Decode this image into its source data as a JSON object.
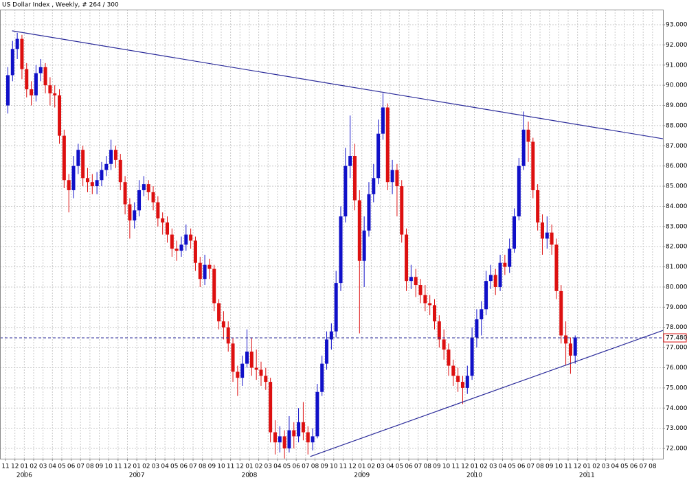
{
  "chart_data": {
    "type": "candlestick",
    "title": "US Dollar Index , Weekly, # 264 / 300",
    "xlim": [
      -0.59,
      70.11
    ],
    "ylim": [
      71.49,
      93.75
    ],
    "grid": true,
    "up_color": "#1010c8",
    "down_color": "#dd1010",
    "line_color": "#2a2a9a",
    "x": [
      0.25,
      0.75,
      1.25,
      1.75,
      2.25,
      2.75,
      3.25,
      3.75,
      4.25,
      4.75,
      5.25,
      5.75,
      6.25,
      6.75,
      7.25,
      7.75,
      8.25,
      8.75,
      9.25,
      9.75,
      10.25,
      10.75,
      11.25,
      11.75,
      12.25,
      12.75,
      13.25,
      13.75,
      14.25,
      14.75,
      15.25,
      15.75,
      16.25,
      16.75,
      17.25,
      17.75,
      18.25,
      18.75,
      19.25,
      19.75,
      20.25,
      20.75,
      21.25,
      21.75,
      22.25,
      22.75,
      23.25,
      23.75,
      24.25,
      24.75,
      25.25,
      25.75,
      26.25,
      26.75,
      27.25,
      27.75,
      28.25,
      28.75,
      29.25,
      29.75,
      30.25,
      30.75,
      31.25,
      31.75,
      32.25,
      32.75,
      33.25,
      33.75,
      34.25,
      34.75,
      35.25,
      35.75,
      36.25,
      36.75,
      37.25,
      37.75,
      38.25,
      38.75,
      39.25,
      39.75,
      40.25,
      40.75,
      41.25,
      41.75,
      42.25,
      42.75,
      43.25,
      43.75,
      44.25,
      44.75,
      45.25,
      45.75,
      46.25,
      46.75,
      47.25,
      47.75,
      48.25,
      48.75,
      49.25,
      49.75,
      50.25,
      50.75,
      51.25,
      51.75,
      52.25,
      52.75,
      53.25,
      53.75,
      54.25,
      54.75,
      55.25,
      55.75,
      56.25,
      56.75,
      57.25,
      57.75,
      58.25,
      58.75,
      59.25,
      59.75,
      60.25,
      60.75
    ],
    "open": [
      89.0,
      90.5,
      91.8,
      92.3,
      90.8,
      89.8,
      89.5,
      90.6,
      90.9,
      90.0,
      89.6,
      89.5,
      87.5,
      85.3,
      84.8,
      86.0,
      86.8,
      85.4,
      85.2,
      85.0,
      85.3,
      85.8,
      86.1,
      86.8,
      86.3,
      85.2,
      84.1,
      83.3,
      83.8,
      84.8,
      85.1,
      84.7,
      84.2,
      83.4,
      83.2,
      82.6,
      81.9,
      81.8,
      82.1,
      82.6,
      82.3,
      81.2,
      80.4,
      81.1,
      80.9,
      79.2,
      78.3,
      78.0,
      77.2,
      75.8,
      75.5,
      76.2,
      76.8,
      76.0,
      75.9,
      75.6,
      75.3,
      72.8,
      72.3,
      72.6,
      72.0,
      72.9,
      72.6,
      73.3,
      72.8,
      72.3,
      72.6,
      74.8,
      76.2,
      77.4,
      77.8,
      80.2,
      83.5,
      86.0,
      86.5,
      84.3,
      81.3,
      82.8,
      84.6,
      85.4,
      87.6,
      88.9,
      85.2,
      85.8,
      85.0,
      82.6,
      80.3,
      80.5,
      80.1,
      79.6,
      79.2,
      79.1,
      78.3,
      77.4,
      76.9,
      76.1,
      75.6,
      75.3,
      75.0,
      75.6,
      77.5,
      78.4,
      78.9,
      80.3,
      80.6,
      80.0,
      81.2,
      81.0,
      81.9,
      83.5,
      86.0,
      87.8,
      87.2,
      84.8,
      83.2,
      82.4,
      82.7,
      82.1,
      79.8,
      77.6,
      77.2,
      76.6
    ],
    "high": [
      90.9,
      92.2,
      92.6,
      92.5,
      91.1,
      90.2,
      91.0,
      91.3,
      91.1,
      90.4,
      90.0,
      89.8,
      87.8,
      85.6,
      86.5,
      87.1,
      87.0,
      85.9,
      85.6,
      85.7,
      86.2,
      86.5,
      87.3,
      87.0,
      86.6,
      85.5,
      84.4,
      84.2,
      85.3,
      85.5,
      85.3,
      85.0,
      84.5,
      83.7,
      83.5,
      82.9,
      82.3,
      82.5,
      83.1,
      82.9,
      82.5,
      81.5,
      81.6,
      81.4,
      81.1,
      79.4,
      78.8,
      78.3,
      77.5,
      76.1,
      76.6,
      77.9,
      77.5,
      76.9,
      76.3,
      76.0,
      75.5,
      73.4,
      73.1,
      72.9,
      73.6,
      73.3,
      74.0,
      74.3,
      73.1,
      73.0,
      75.2,
      76.6,
      77.8,
      78.2,
      80.8,
      84.0,
      86.9,
      88.5,
      87.1,
      84.8,
      83.5,
      85.2,
      86.1,
      88.3,
      89.6,
      89.1,
      86.3,
      86.1,
      85.3,
      82.9,
      81.1,
      80.9,
      80.4,
      80.1,
      79.6,
      79.4,
      78.6,
      77.9,
      77.2,
      76.4,
      76.0,
      75.6,
      76.1,
      78.0,
      78.9,
      79.3,
      80.8,
      81.1,
      80.9,
      81.6,
      81.6,
      82.4,
      83.9,
      86.4,
      88.7,
      88.2,
      87.4,
      85.1,
      83.6,
      83.5,
      83.1,
      82.4,
      80.1,
      78.3,
      77.5,
      77.6
    ],
    "low": [
      88.6,
      90.2,
      91.3,
      90.3,
      89.4,
      89.0,
      89.2,
      90.2,
      89.6,
      89.0,
      88.9,
      87.1,
      84.9,
      83.7,
      84.4,
      85.6,
      85.0,
      84.7,
      84.6,
      84.6,
      85.0,
      85.5,
      85.8,
      85.9,
      84.8,
      83.6,
      82.4,
      82.9,
      83.5,
      84.5,
      84.3,
      83.8,
      83.0,
      82.6,
      82.2,
      81.5,
      81.3,
      81.5,
      81.8,
      81.9,
      80.8,
      80.0,
      80.1,
      80.4,
      78.8,
      77.9,
      77.4,
      76.8,
      75.3,
      74.6,
      75.1,
      76.0,
      75.6,
      75.4,
      75.1,
      74.9,
      72.3,
      71.7,
      71.8,
      71.5,
      71.8,
      72.0,
      72.3,
      72.4,
      71.7,
      71.9,
      72.5,
      74.6,
      75.9,
      76.9,
      77.5,
      79.8,
      83.2,
      85.4,
      83.8,
      77.7,
      80.0,
      82.5,
      84.2,
      85.1,
      87.3,
      84.8,
      84.6,
      83.5,
      82.2,
      79.8,
      79.9,
      79.5,
      79.2,
      78.8,
      78.6,
      77.9,
      77.0,
      76.4,
      75.6,
      75.1,
      74.8,
      74.2,
      74.7,
      75.4,
      77.0,
      77.6,
      78.6,
      79.9,
      79.6,
      79.8,
      80.6,
      80.7,
      81.7,
      83.3,
      85.8,
      86.2,
      84.4,
      82.8,
      81.6,
      81.9,
      81.6,
      79.4,
      77.2,
      76.1,
      75.7,
      76.2
    ],
    "close": [
      90.5,
      91.8,
      92.3,
      90.8,
      89.8,
      89.5,
      90.6,
      90.9,
      90.0,
      89.6,
      89.5,
      87.5,
      85.3,
      84.8,
      86.0,
      86.8,
      85.4,
      85.2,
      85.0,
      85.3,
      85.8,
      86.1,
      86.8,
      86.3,
      85.2,
      84.1,
      83.3,
      83.8,
      84.8,
      85.1,
      84.7,
      84.2,
      83.4,
      83.2,
      82.6,
      81.9,
      81.8,
      82.1,
      82.6,
      82.3,
      81.2,
      80.4,
      81.1,
      80.9,
      79.2,
      78.3,
      78.0,
      77.2,
      75.8,
      75.5,
      76.2,
      76.8,
      76.0,
      75.9,
      75.6,
      75.3,
      72.8,
      72.3,
      72.6,
      72.0,
      72.9,
      72.6,
      73.3,
      72.8,
      72.3,
      72.6,
      74.8,
      76.2,
      77.4,
      77.8,
      80.2,
      83.5,
      86.0,
      86.5,
      84.3,
      81.3,
      82.8,
      84.6,
      85.4,
      87.6,
      88.9,
      85.2,
      85.8,
      85.0,
      82.6,
      80.3,
      80.5,
      80.1,
      79.6,
      79.2,
      79.1,
      78.3,
      77.4,
      76.9,
      76.1,
      75.6,
      75.3,
      75.0,
      75.6,
      77.5,
      78.4,
      78.9,
      80.3,
      80.6,
      80.0,
      81.2,
      81.0,
      81.9,
      83.5,
      86.0,
      87.8,
      87.2,
      84.8,
      83.2,
      82.4,
      82.7,
      82.1,
      79.8,
      77.6,
      77.2,
      76.6,
      77.5
    ],
    "trendlines": [
      {
        "x": [
          0.7,
          70.11
        ],
        "y": [
          92.7,
          87.35
        ]
      },
      {
        "x": [
          32.5,
          70.11
        ],
        "y": [
          71.6,
          77.85
        ]
      }
    ],
    "current_price": {
      "value": 77.48,
      "label": "77.480"
    },
    "yticks": [
      {
        "value": 72,
        "label": "72.000"
      },
      {
        "value": 73,
        "label": "73.000"
      },
      {
        "value": 74,
        "label": "74.000"
      },
      {
        "value": 75,
        "label": "75.000"
      },
      {
        "value": 76,
        "label": "76.000"
      },
      {
        "value": 77,
        "label": "77.000"
      },
      {
        "value": 78,
        "label": "78.000"
      },
      {
        "value": 79,
        "label": "79.000"
      },
      {
        "value": 80,
        "label": "80.000"
      },
      {
        "value": 81,
        "label": "81.000"
      },
      {
        "value": 82,
        "label": "82.000"
      },
      {
        "value": 83,
        "label": "83.000"
      },
      {
        "value": 84,
        "label": "84.000"
      },
      {
        "value": 85,
        "label": "85.000"
      },
      {
        "value": 86,
        "label": "86.000"
      },
      {
        "value": 87,
        "label": "87.000"
      },
      {
        "value": 88,
        "label": "88.000"
      },
      {
        "value": 89,
        "label": "89.000"
      },
      {
        "value": 90,
        "label": "90.000"
      },
      {
        "value": 91,
        "label": "91.000"
      },
      {
        "value": 92,
        "label": "92.000"
      },
      {
        "value": 93,
        "label": "93.000"
      }
    ],
    "xticks": [
      {
        "value": 0,
        "label": "11"
      },
      {
        "value": 1,
        "label": "12"
      },
      {
        "value": 2,
        "label": "01"
      },
      {
        "value": 3,
        "label": "02"
      },
      {
        "value": 4,
        "label": "03"
      },
      {
        "value": 5,
        "label": "04"
      },
      {
        "value": 6,
        "label": "05"
      },
      {
        "value": 7,
        "label": "06"
      },
      {
        "value": 8,
        "label": "07"
      },
      {
        "value": 9,
        "label": "08"
      },
      {
        "value": 10,
        "label": "09"
      },
      {
        "value": 11,
        "label": "10"
      },
      {
        "value": 12,
        "label": "11"
      },
      {
        "value": 13,
        "label": "12"
      },
      {
        "value": 14,
        "label": "01"
      },
      {
        "value": 15,
        "label": "02"
      },
      {
        "value": 16,
        "label": "03"
      },
      {
        "value": 17,
        "label": "04"
      },
      {
        "value": 18,
        "label": "05"
      },
      {
        "value": 19,
        "label": "06"
      },
      {
        "value": 20,
        "label": "07"
      },
      {
        "value": 21,
        "label": "08"
      },
      {
        "value": 22,
        "label": "09"
      },
      {
        "value": 23,
        "label": "10"
      },
      {
        "value": 24,
        "label": "11"
      },
      {
        "value": 25,
        "label": "12"
      },
      {
        "value": 26,
        "label": "01"
      },
      {
        "value": 27,
        "label": "02"
      },
      {
        "value": 28,
        "label": "03"
      },
      {
        "value": 29,
        "label": "04"
      },
      {
        "value": 30,
        "label": "05"
      },
      {
        "value": 31,
        "label": "06"
      },
      {
        "value": 32,
        "label": "07"
      },
      {
        "value": 33,
        "label": "08"
      },
      {
        "value": 34,
        "label": "09"
      },
      {
        "value": 35,
        "label": "10"
      },
      {
        "value": 36,
        "label": "11"
      },
      {
        "value": 37,
        "label": "12"
      },
      {
        "value": 38,
        "label": "01"
      },
      {
        "value": 39,
        "label": "02"
      },
      {
        "value": 40,
        "label": "03"
      },
      {
        "value": 41,
        "label": "04"
      },
      {
        "value": 42,
        "label": "05"
      },
      {
        "value": 43,
        "label": "06"
      },
      {
        "value": 44,
        "label": "07"
      },
      {
        "value": 45,
        "label": "08"
      },
      {
        "value": 46,
        "label": "09"
      },
      {
        "value": 47,
        "label": "10"
      },
      {
        "value": 48,
        "label": "11"
      },
      {
        "value": 49,
        "label": "12"
      },
      {
        "value": 50,
        "label": "01"
      },
      {
        "value": 51,
        "label": "02"
      },
      {
        "value": 52,
        "label": "03"
      },
      {
        "value": 53,
        "label": "04"
      },
      {
        "value": 54,
        "label": "05"
      },
      {
        "value": 55,
        "label": "06"
      },
      {
        "value": 56,
        "label": "07"
      },
      {
        "value": 57,
        "label": "08"
      },
      {
        "value": 58,
        "label": "09"
      },
      {
        "value": 59,
        "label": "10"
      },
      {
        "value": 60,
        "label": "11"
      },
      {
        "value": 61,
        "label": "12"
      },
      {
        "value": 62,
        "label": "01"
      },
      {
        "value": 63,
        "label": "02"
      },
      {
        "value": 64,
        "label": "03"
      },
      {
        "value": 65,
        "label": "04"
      },
      {
        "value": 66,
        "label": "05"
      },
      {
        "value": 67,
        "label": "06"
      },
      {
        "value": 68,
        "label": "07"
      },
      {
        "value": 69,
        "label": "08"
      }
    ],
    "years": [
      {
        "value": 2,
        "label": "2006"
      },
      {
        "value": 14,
        "label": "2007"
      },
      {
        "value": 26,
        "label": "2008"
      },
      {
        "value": 38,
        "label": "2009"
      },
      {
        "value": 50,
        "label": "2010"
      },
      {
        "value": 62,
        "label": "2011"
      }
    ]
  }
}
